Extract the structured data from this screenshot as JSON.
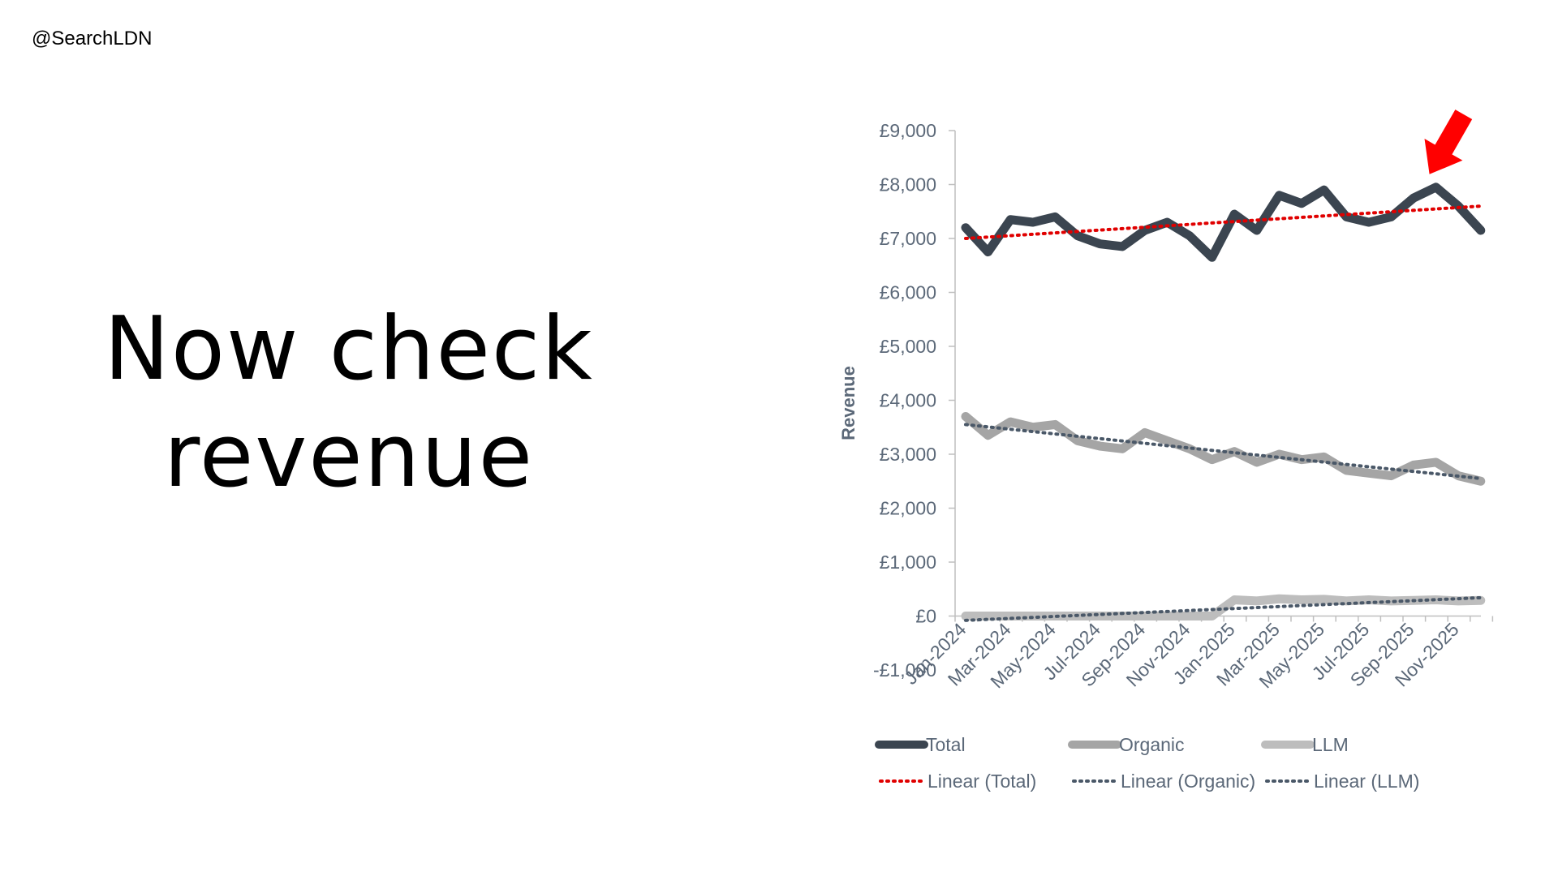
{
  "header": {
    "handle": "@SearchLDN"
  },
  "slide": {
    "headline_line1": "Now check",
    "headline_line2": "revenue"
  },
  "chart_data": {
    "type": "line",
    "title": "",
    "xlabel": "",
    "ylabel": "Revenue",
    "ylim": [
      -1000,
      9000
    ],
    "ytick_labels": [
      "-£1,000",
      "£0",
      "£1,000",
      "£2,000",
      "£3,000",
      "£4,000",
      "£5,000",
      "£6,000",
      "£7,000",
      "£8,000",
      "£9,000"
    ],
    "yticks": [
      -1000,
      0,
      1000,
      2000,
      3000,
      4000,
      5000,
      6000,
      7000,
      8000,
      9000
    ],
    "categories": [
      "Jan-2024",
      "Feb-2024",
      "Mar-2024",
      "Apr-2024",
      "May-2024",
      "Jun-2024",
      "Jul-2024",
      "Aug-2024",
      "Sep-2024",
      "Oct-2024",
      "Nov-2024",
      "Dec-2024",
      "Jan-2025",
      "Feb-2025",
      "Mar-2025",
      "Apr-2025",
      "May-2025",
      "Jun-2025",
      "Jul-2025",
      "Aug-2025",
      "Sep-2025",
      "Oct-2025",
      "Nov-2025",
      "Dec-2025"
    ],
    "xtick_labels": [
      "Jan-2024",
      "Mar-2024",
      "May-2024",
      "Jul-2024",
      "Sep-2024",
      "Nov-2024",
      "Jan-2025",
      "Mar-2025",
      "May-2025",
      "Jul-2025",
      "Sep-2025",
      "Nov-2025"
    ],
    "series": [
      {
        "name": "Total",
        "color": "#3b4550",
        "values": [
          7200,
          6750,
          7350,
          7300,
          7400,
          7050,
          6900,
          6850,
          7150,
          7300,
          7050,
          6650,
          7450,
          7150,
          7800,
          7650,
          7900,
          7400,
          7300,
          7400,
          7750,
          7950,
          7600,
          7150
        ]
      },
      {
        "name": "Organic",
        "color": "#a5a5a5",
        "values": [
          3700,
          3350,
          3600,
          3500,
          3550,
          3250,
          3150,
          3100,
          3400,
          3250,
          3100,
          2900,
          3050,
          2850,
          3000,
          2900,
          2950,
          2700,
          2650,
          2600,
          2800,
          2850,
          2600,
          2500
        ]
      },
      {
        "name": "LLM",
        "color": "#bdbdbd",
        "values": [
          0,
          0,
          0,
          0,
          0,
          0,
          0,
          0,
          0,
          0,
          0,
          0,
          300,
          280,
          320,
          300,
          310,
          280,
          300,
          280,
          290,
          300,
          280,
          290
        ]
      }
    ],
    "trendlines": [
      {
        "name": "Linear (Total)",
        "color": "#e00000",
        "start": 7000,
        "end": 7600
      },
      {
        "name": "Linear (Organic)",
        "color": "#4a5868",
        "start": 3550,
        "end": 2550
      },
      {
        "name": "Linear (LLM)",
        "color": "#4a5868",
        "start": -80,
        "end": 340
      }
    ],
    "annotation": {
      "type": "arrow",
      "color": "#ff0000",
      "points_to": "Oct-2025"
    },
    "legend_position": "bottom",
    "grid": false
  }
}
